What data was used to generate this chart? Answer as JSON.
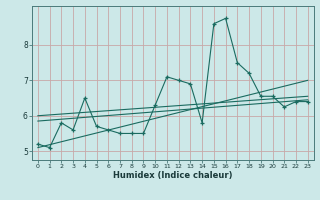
{
  "title": "",
  "xlabel": "Humidex (Indice chaleur)",
  "ylabel": "",
  "bg_color": "#cce8e8",
  "grid_color": "#c8a8a8",
  "line_color": "#1a6b60",
  "xlim": [
    -0.5,
    23.5
  ],
  "ylim": [
    4.75,
    9.1
  ],
  "xticks": [
    0,
    1,
    2,
    3,
    4,
    5,
    6,
    7,
    8,
    9,
    10,
    11,
    12,
    13,
    14,
    15,
    16,
    17,
    18,
    19,
    20,
    21,
    22,
    23
  ],
  "yticks": [
    5,
    6,
    7,
    8
  ],
  "main_x": [
    0,
    1,
    2,
    3,
    4,
    5,
    6,
    7,
    8,
    9,
    10,
    11,
    12,
    13,
    14,
    15,
    16,
    17,
    18,
    19,
    20,
    21,
    22,
    23
  ],
  "main_y": [
    5.2,
    5.1,
    5.8,
    5.6,
    6.5,
    5.7,
    5.6,
    5.5,
    5.5,
    5.5,
    6.3,
    7.1,
    7.0,
    6.9,
    5.8,
    8.6,
    8.75,
    7.5,
    7.2,
    6.55,
    6.55,
    6.25,
    6.4,
    6.4
  ],
  "trend1_x": [
    0,
    23
  ],
  "trend1_y": [
    5.1,
    7.0
  ],
  "trend2_x": [
    0,
    23
  ],
  "trend2_y": [
    5.85,
    6.45
  ],
  "trend3_x": [
    0,
    23
  ],
  "trend3_y": [
    6.0,
    6.55
  ]
}
